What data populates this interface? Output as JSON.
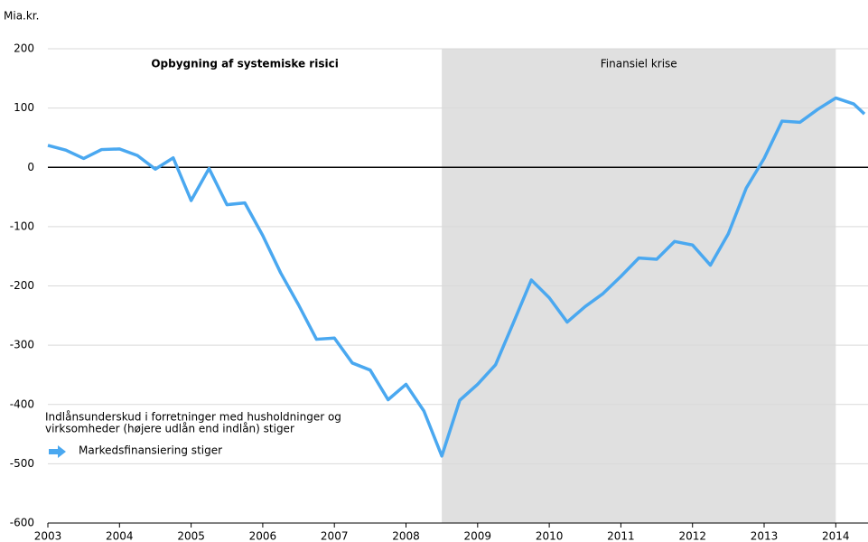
{
  "chart_data": {
    "type": "line",
    "y_unit": "Mia.kr.",
    "annotation": "Opbygning af systemiske risici",
    "shaded_region": {
      "label": "Finansiel krise",
      "xlim": [
        2008.5,
        2014
      ]
    },
    "legend_note": [
      "Indlånsunderskud i forretninger med husholdninger og",
      "virksomheder (højere udlån end indlån) stiger"
    ],
    "x": [
      2003,
      2003.25,
      2003.5,
      2003.75,
      2004,
      2004.25,
      2004.5,
      2004.75,
      2005,
      2005.25,
      2005.5,
      2005.75,
      2006,
      2006.25,
      2006.5,
      2006.75,
      2007,
      2007.25,
      2007.5,
      2007.75,
      2008,
      2008.25,
      2008.5,
      2008.75,
      2009,
      2009.25,
      2009.5,
      2009.75,
      2010,
      2010.25,
      2010.5,
      2010.75,
      2011,
      2011.25,
      2011.5,
      2011.75,
      2012,
      2012.25,
      2012.5,
      2012.75,
      2013,
      2013.25,
      2013.5,
      2013.75,
      2014,
      2014.25,
      2014.4
    ],
    "series": [
      {
        "name": "Markedsfinansiering stiger",
        "color": "#4aa8f0",
        "values": [
          37,
          29,
          15,
          30,
          31,
          20,
          -3,
          16,
          -56,
          -2,
          -63,
          -60,
          -115,
          -178,
          -232,
          -290,
          -288,
          -330,
          -342,
          -392,
          -366,
          -411,
          -487,
          -393,
          -366,
          -333,
          -262,
          -190,
          -220,
          -261,
          -235,
          -213,
          -184,
          -153,
          -155,
          -125,
          -131,
          -165,
          -112,
          -35,
          15,
          78,
          76,
          98,
          117,
          107,
          90
        ]
      }
    ],
    "xlim": [
      2003,
      2014.45
    ],
    "xticks": [
      2003,
      2004,
      2005,
      2006,
      2007,
      2008,
      2009,
      2010,
      2011,
      2012,
      2013,
      2014
    ],
    "ylim": [
      -600,
      200
    ],
    "yticks": [
      -600,
      -500,
      -400,
      -300,
      -200,
      -100,
      0,
      100,
      200
    ],
    "grid": true
  }
}
